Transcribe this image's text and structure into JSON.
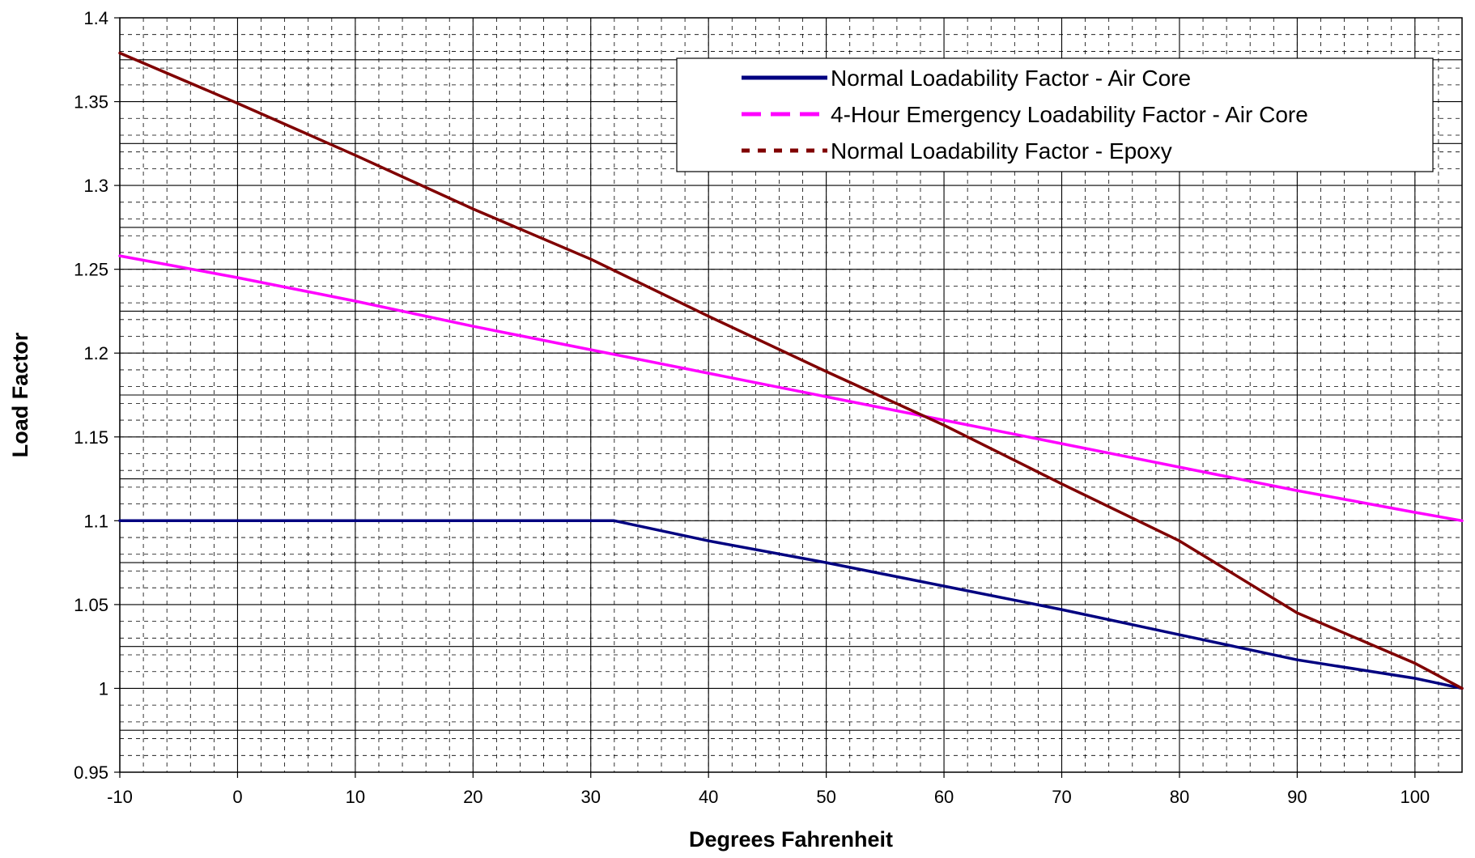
{
  "chart_data": {
    "type": "line",
    "title": "",
    "xlabel": "Degrees Fahrenheit",
    "ylabel": "Load Factor",
    "xlim": [
      -10,
      104
    ],
    "ylim": [
      0.95,
      1.4
    ],
    "x_ticks": [
      -10,
      0,
      10,
      20,
      30,
      40,
      50,
      60,
      70,
      80,
      90,
      100
    ],
    "y_ticks": [
      0.95,
      1,
      1.05,
      1.1,
      1.15,
      1.2,
      1.25,
      1.3,
      1.35,
      1.4
    ],
    "x_tick_labels": [
      "-10",
      "0",
      "10",
      "20",
      "30",
      "40",
      "50",
      "60",
      "70",
      "80",
      "90",
      "100"
    ],
    "y_tick_labels": [
      "0.95",
      "1",
      "1.05",
      "1.1",
      "1.15",
      "1.2",
      "1.25",
      "1.3",
      "1.35",
      "1.4"
    ],
    "grid": true,
    "minor_grid": true,
    "legend_position": "top-right",
    "series": [
      {
        "name": "Normal Loadability Factor - Air Core",
        "color": "#000080",
        "style": "solid",
        "x": [
          -10,
          0,
          10,
          20,
          30,
          32,
          40,
          50,
          60,
          70,
          80,
          90,
          100,
          104
        ],
        "y": [
          1.1,
          1.1,
          1.1,
          1.1,
          1.1,
          1.1,
          1.088,
          1.075,
          1.061,
          1.047,
          1.032,
          1.017,
          1.006,
          1.0
        ]
      },
      {
        "name": "4-Hour Emergency Loadability Factor - Air Core",
        "color": "#ff00ff",
        "style": "dashed",
        "x": [
          -10,
          0,
          10,
          20,
          30,
          40,
          50,
          60,
          70,
          80,
          90,
          100,
          104
        ],
        "y": [
          1.258,
          1.245,
          1.231,
          1.216,
          1.202,
          1.188,
          1.174,
          1.16,
          1.146,
          1.132,
          1.118,
          1.105,
          1.1
        ]
      },
      {
        "name": "Normal Loadability Factor - Epoxy",
        "color": "#800000",
        "style": "dotted",
        "x": [
          -10,
          0,
          10,
          20,
          30,
          40,
          50,
          60,
          70,
          80,
          90,
          100,
          104
        ],
        "y": [
          1.379,
          1.349,
          1.318,
          1.286,
          1.256,
          1.222,
          1.189,
          1.157,
          1.122,
          1.088,
          1.045,
          1.015,
          1.0
        ]
      }
    ]
  }
}
